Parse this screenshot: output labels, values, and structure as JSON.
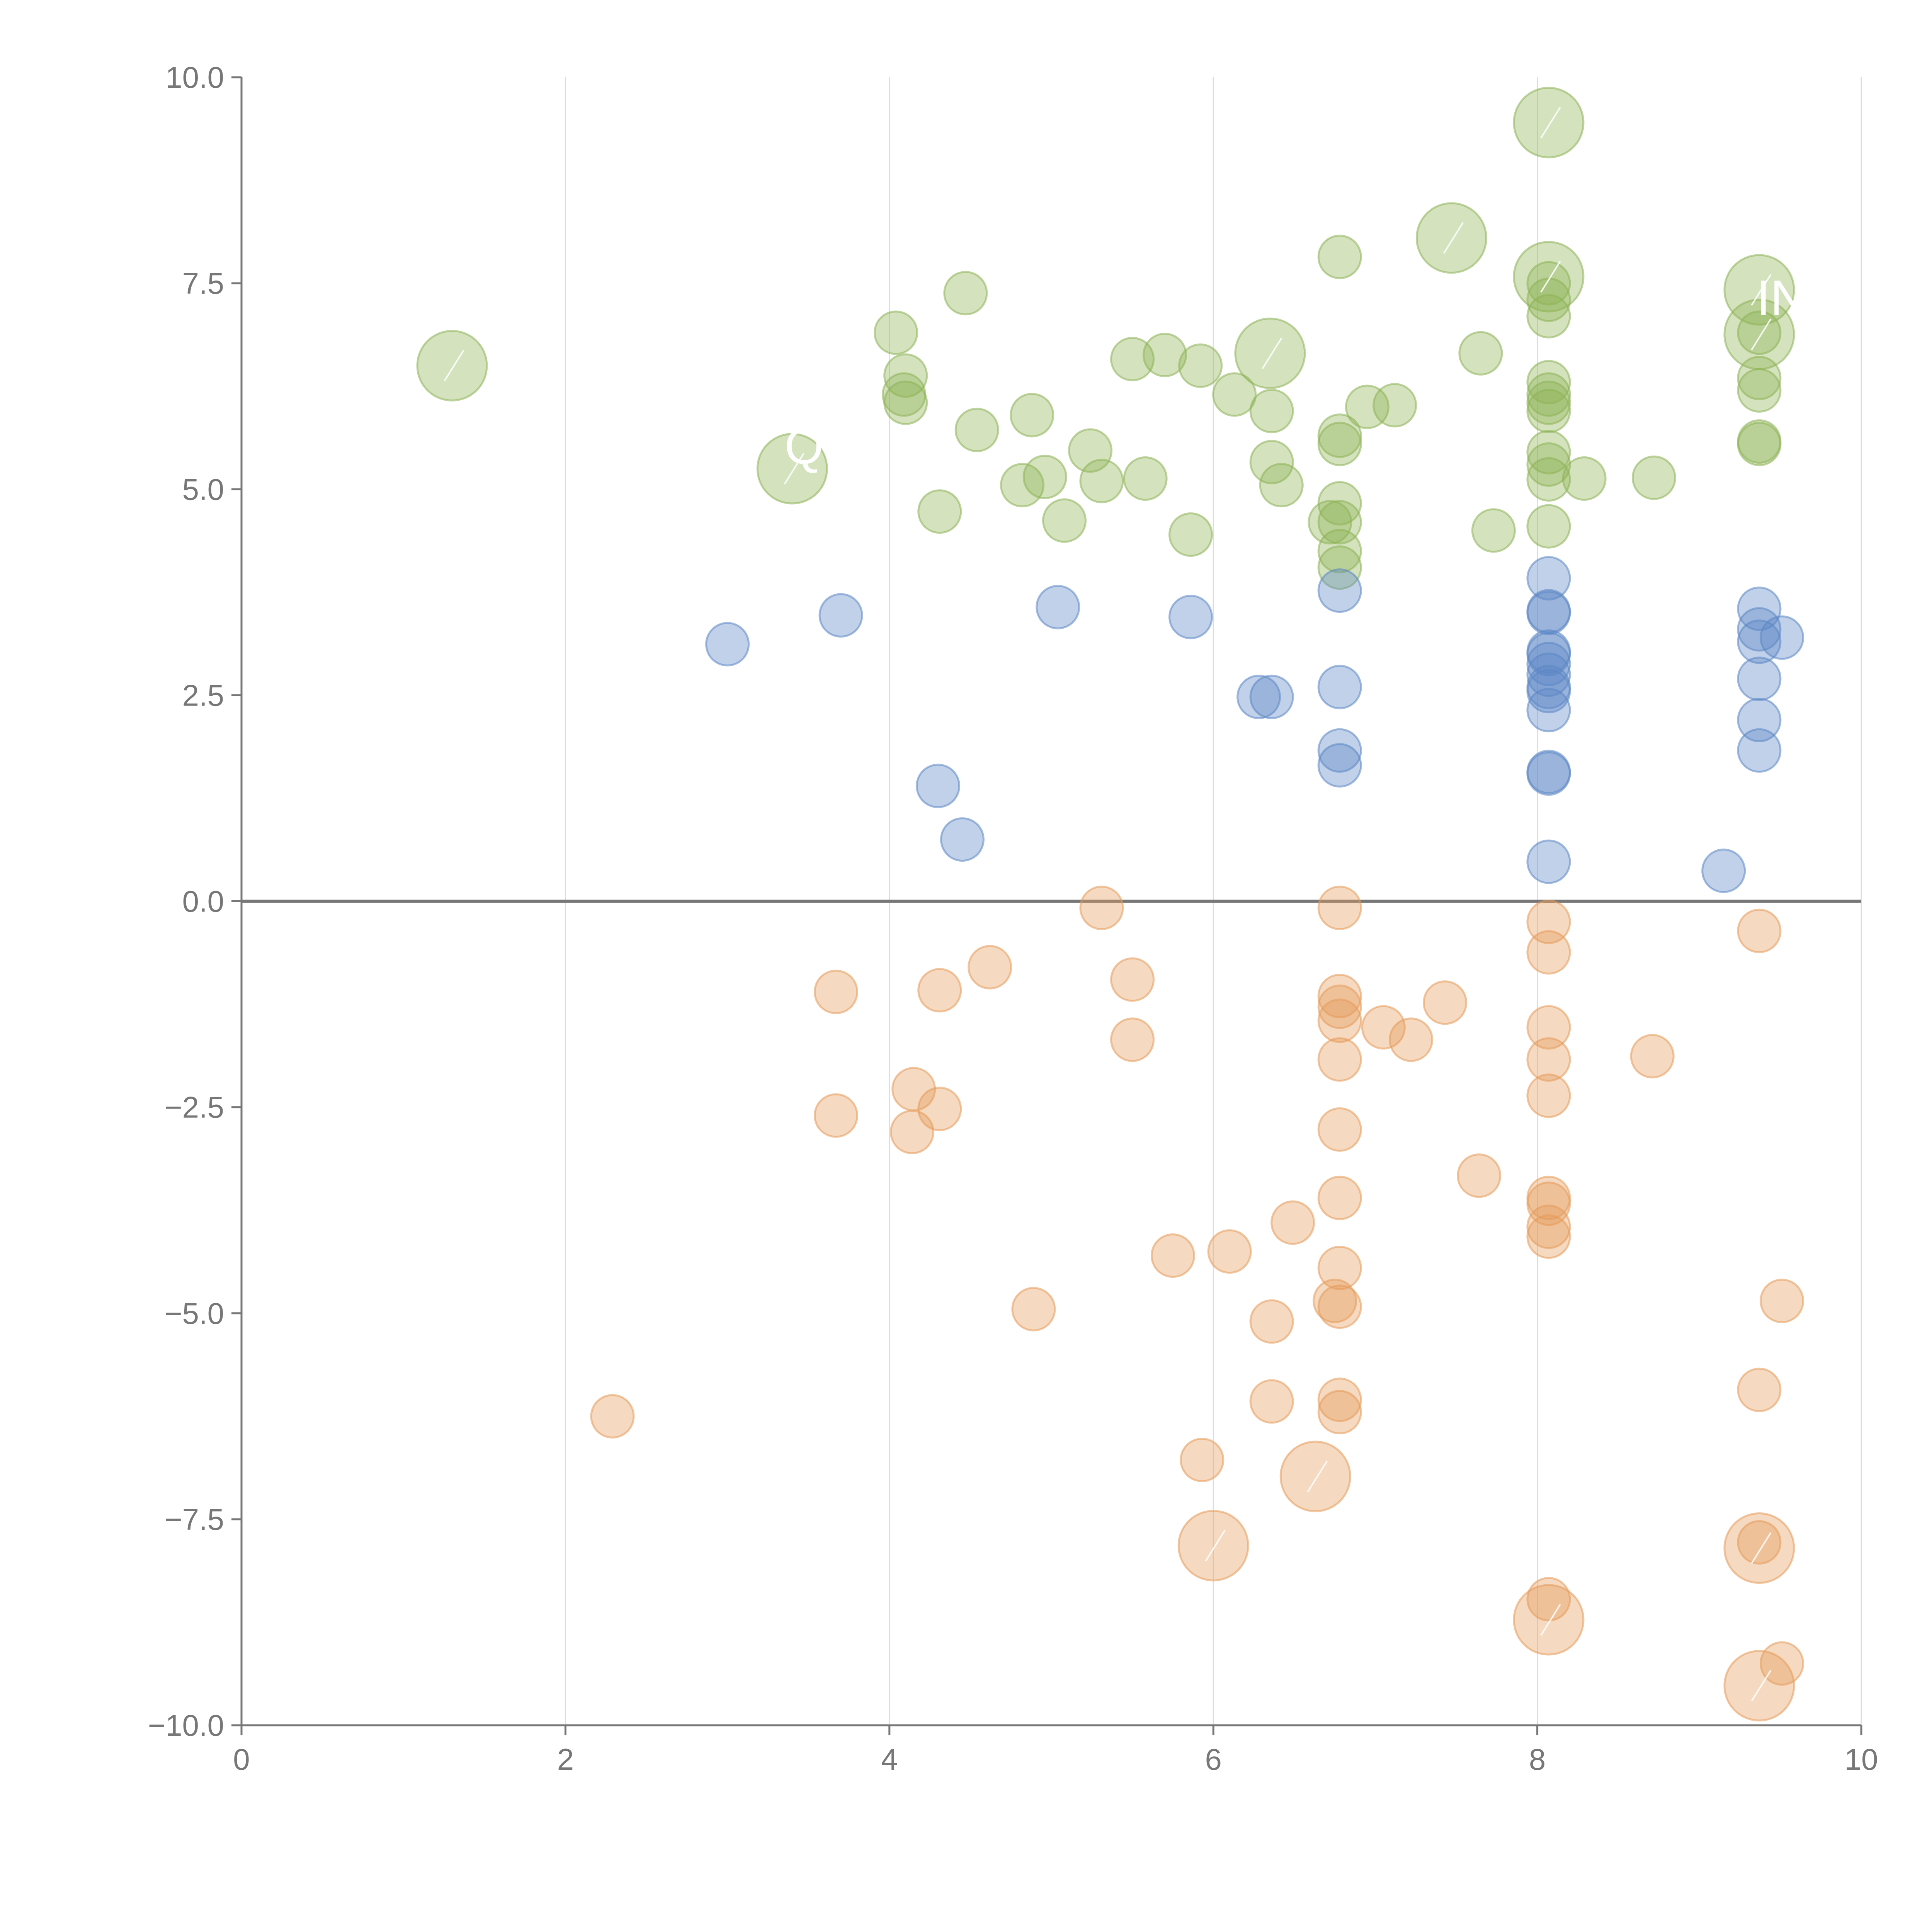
{
  "chart_data": {
    "type": "scatter",
    "title": "",
    "xlabel": "",
    "ylabel": "",
    "xlim": [
      0,
      10
    ],
    "ylim": [
      -10,
      10
    ],
    "x_ticks": [
      {
        "value": 0,
        "label": "0"
      },
      {
        "value": 2,
        "label": "2"
      },
      {
        "value": 4,
        "label": "4"
      },
      {
        "value": 6,
        "label": "6"
      },
      {
        "value": 8,
        "label": "8"
      },
      {
        "value": 10,
        "label": "10"
      }
    ],
    "y_ticks": [
      {
        "value": 10,
        "label": "10.0"
      },
      {
        "value": 7.5,
        "label": "7.5"
      },
      {
        "value": 5,
        "label": "5.0"
      },
      {
        "value": 2.5,
        "label": "2.5"
      },
      {
        "value": 0,
        "label": "0.0"
      },
      {
        "value": -2.5,
        "label": "−2.5"
      },
      {
        "value": -5,
        "label": "−5.0"
      },
      {
        "value": -7.5,
        "label": "−7.5"
      },
      {
        "value": -10,
        "label": "−10.0"
      }
    ],
    "grid": "vertical",
    "reference_line_y": 0,
    "annotations": [
      {
        "text": "IN",
        "x": 9.4,
        "y": 7.3
      },
      {
        "text": "Q",
        "x": 3.4,
        "y": 5.5
      }
    ],
    "series": [
      {
        "name": "green",
        "color": "#8db255",
        "points": [
          [
            1.3,
            6.5,
            2
          ],
          [
            3.4,
            5.25,
            2
          ],
          [
            4.04,
            6.9,
            1
          ],
          [
            4.1,
            6.38,
            1
          ],
          [
            4.09,
            6.15,
            1
          ],
          [
            4.1,
            6.05,
            1
          ],
          [
            4.47,
            7.38,
            1
          ],
          [
            4.54,
            5.72,
            1
          ],
          [
            4.31,
            4.73,
            1
          ],
          [
            4.82,
            5.05,
            1
          ],
          [
            4.88,
            5.9,
            1
          ],
          [
            4.96,
            5.15,
            1
          ],
          [
            5.08,
            4.62,
            1
          ],
          [
            5.24,
            5.47,
            1
          ],
          [
            5.31,
            5.1,
            1
          ],
          [
            5.5,
            6.58,
            1
          ],
          [
            5.58,
            5.13,
            1
          ],
          [
            5.7,
            6.63,
            1
          ],
          [
            5.86,
            4.45,
            1
          ],
          [
            5.92,
            6.5,
            1
          ],
          [
            6.13,
            6.15,
            1
          ],
          [
            6.35,
            6.65,
            2
          ],
          [
            6.36,
            5.95,
            1
          ],
          [
            6.36,
            5.33,
            1
          ],
          [
            6.42,
            5.05,
            1
          ],
          [
            6.72,
            4.6,
            1
          ],
          [
            6.78,
            7.82,
            1
          ],
          [
            6.78,
            5.65,
            1
          ],
          [
            6.78,
            5.55,
            1
          ],
          [
            6.78,
            4.83,
            1
          ],
          [
            6.78,
            4.25,
            1
          ],
          [
            6.78,
            4.05,
            1
          ],
          [
            6.78,
            4.6,
            1
          ],
          [
            6.95,
            6.0,
            1
          ],
          [
            7.12,
            6.02,
            1
          ],
          [
            7.47,
            8.05,
            2
          ],
          [
            7.65,
            6.65,
            1
          ],
          [
            7.73,
            4.5,
            1
          ],
          [
            8.07,
            9.45,
            2
          ],
          [
            8.07,
            7.58,
            2
          ],
          [
            8.07,
            7.5,
            1
          ],
          [
            8.07,
            7.3,
            1
          ],
          [
            8.07,
            7.1,
            1
          ],
          [
            8.07,
            6.3,
            1
          ],
          [
            8.07,
            6.15,
            1
          ],
          [
            8.07,
            6.05,
            1
          ],
          [
            8.07,
            5.95,
            1
          ],
          [
            8.07,
            5.45,
            1
          ],
          [
            8.07,
            5.3,
            1
          ],
          [
            8.07,
            5.12,
            1
          ],
          [
            8.07,
            4.55,
            1
          ],
          [
            8.29,
            5.13,
            1
          ],
          [
            8.72,
            5.14,
            1
          ],
          [
            9.37,
            7.42,
            2
          ],
          [
            9.37,
            6.88,
            2
          ],
          [
            9.37,
            6.9,
            1
          ],
          [
            9.37,
            6.35,
            1
          ],
          [
            9.37,
            6.2,
            1
          ],
          [
            9.37,
            5.58,
            1
          ],
          [
            9.37,
            5.55,
            1
          ]
        ]
      },
      {
        "name": "blue",
        "color": "#5b86c5",
        "points": [
          [
            3.0,
            3.12,
            1
          ],
          [
            3.7,
            3.47,
            1
          ],
          [
            4.3,
            1.4,
            1
          ],
          [
            4.45,
            0.75,
            1
          ],
          [
            5.04,
            3.57,
            1
          ],
          [
            5.86,
            3.45,
            1
          ],
          [
            6.28,
            2.48,
            1
          ],
          [
            6.36,
            2.48,
            1
          ],
          [
            6.78,
            3.77,
            1
          ],
          [
            6.78,
            2.6,
            1
          ],
          [
            6.78,
            1.83,
            1
          ],
          [
            6.78,
            1.65,
            1
          ],
          [
            8.07,
            3.92,
            1
          ],
          [
            8.07,
            3.5,
            1
          ],
          [
            8.07,
            3.52,
            1
          ],
          [
            8.07,
            3.03,
            1
          ],
          [
            8.07,
            3.0,
            1
          ],
          [
            8.07,
            2.88,
            1
          ],
          [
            8.07,
            2.75,
            1
          ],
          [
            8.07,
            2.6,
            1
          ],
          [
            8.07,
            2.55,
            1
          ],
          [
            8.07,
            2.32,
            1
          ],
          [
            8.07,
            1.57,
            1
          ],
          [
            8.07,
            1.55,
            1
          ],
          [
            8.07,
            0.48,
            1
          ],
          [
            9.15,
            0.37,
            1
          ],
          [
            9.37,
            3.55,
            1
          ],
          [
            9.37,
            3.3,
            1
          ],
          [
            9.37,
            3.15,
            1
          ],
          [
            9.37,
            2.7,
            1
          ],
          [
            9.37,
            2.2,
            1
          ],
          [
            9.37,
            1.83,
            1
          ],
          [
            9.51,
            3.2,
            1
          ]
        ]
      },
      {
        "name": "orange",
        "color": "#e59a5a",
        "points": [
          [
            2.29,
            -6.25,
            1
          ],
          [
            3.67,
            -1.1,
            1
          ],
          [
            3.67,
            -2.6,
            1
          ],
          [
            4.14,
            -2.8,
            1
          ],
          [
            4.15,
            -2.28,
            1
          ],
          [
            4.31,
            -1.08,
            1
          ],
          [
            4.31,
            -2.52,
            1
          ],
          [
            4.62,
            -0.8,
            1
          ],
          [
            4.89,
            -4.95,
            1
          ],
          [
            5.31,
            -0.08,
            1
          ],
          [
            5.5,
            -0.95,
            1
          ],
          [
            5.5,
            -1.68,
            1
          ],
          [
            5.75,
            -4.3,
            1
          ],
          [
            5.93,
            -6.78,
            1
          ],
          [
            6.0,
            -7.82,
            2
          ],
          [
            6.1,
            -4.25,
            1
          ],
          [
            6.36,
            -5.1,
            1
          ],
          [
            6.36,
            -6.07,
            1
          ],
          [
            6.49,
            -3.9,
            1
          ],
          [
            6.63,
            -6.98,
            2
          ],
          [
            6.75,
            -4.85,
            1
          ],
          [
            6.78,
            -0.08,
            1
          ],
          [
            6.78,
            -1.15,
            1
          ],
          [
            6.78,
            -1.28,
            1
          ],
          [
            6.78,
            -1.45,
            1
          ],
          [
            6.78,
            -1.92,
            1
          ],
          [
            6.78,
            -2.77,
            1
          ],
          [
            6.78,
            -3.6,
            1
          ],
          [
            6.78,
            -4.45,
            1
          ],
          [
            6.78,
            -4.92,
            1
          ],
          [
            6.78,
            -6.05,
            1
          ],
          [
            6.78,
            -6.2,
            1
          ],
          [
            7.05,
            -1.53,
            1
          ],
          [
            7.22,
            -1.68,
            1
          ],
          [
            7.43,
            -1.23,
            1
          ],
          [
            7.64,
            -3.33,
            1
          ],
          [
            8.07,
            -0.25,
            1
          ],
          [
            8.07,
            -0.62,
            1
          ],
          [
            8.07,
            -1.53,
            1
          ],
          [
            8.07,
            -1.92,
            1
          ],
          [
            8.07,
            -2.36,
            1
          ],
          [
            8.07,
            -3.6,
            1
          ],
          [
            8.07,
            -3.67,
            1
          ],
          [
            8.07,
            -3.95,
            1
          ],
          [
            8.07,
            -4.07,
            1
          ],
          [
            8.07,
            -8.47,
            1
          ],
          [
            8.07,
            -8.72,
            2
          ],
          [
            8.71,
            -1.88,
            1
          ],
          [
            9.37,
            -0.36,
            1
          ],
          [
            9.37,
            -5.93,
            1
          ],
          [
            9.37,
            -7.78,
            1
          ],
          [
            9.37,
            -7.85,
            2
          ],
          [
            9.37,
            -9.52,
            2
          ],
          [
            9.51,
            -4.85,
            1
          ],
          [
            9.51,
            -9.25,
            1
          ]
        ]
      }
    ]
  }
}
